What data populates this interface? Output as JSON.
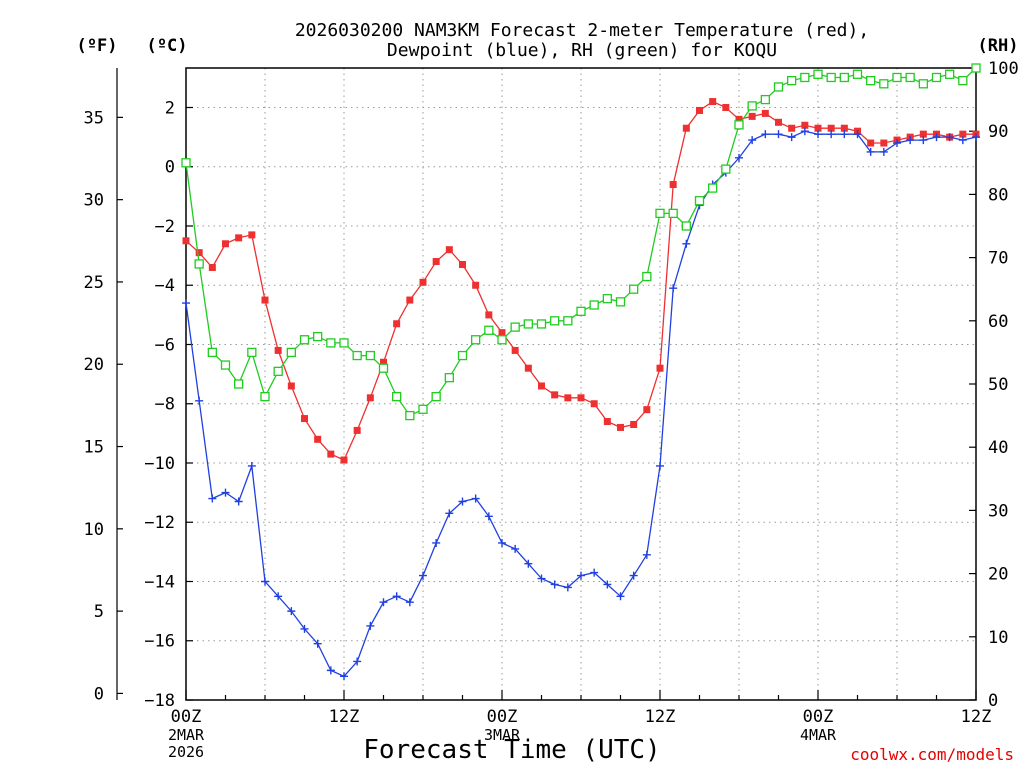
{
  "chart_data": {
    "type": "line",
    "title_line1": "2026030200 NAM3KM Forecast 2-meter Temperature (red),",
    "title_line2": "Dewpoint (blue), RH (green) for KOQU",
    "xlabel": "Forecast Time (UTC)",
    "credit": "coolwx.com/models",
    "units": {
      "fahrenheit": "(ºF)",
      "celsius": "(ºC)",
      "rh": "(RH)"
    },
    "x_hours_range": [
      0,
      60
    ],
    "celsius_range": [
      -18,
      3.333
    ],
    "rh_range": [
      0,
      100
    ],
    "x_ticks": [
      {
        "hour": 0,
        "label": "00Z",
        "date1": "2MAR",
        "date2": "2026"
      },
      {
        "hour": 12,
        "label": "12Z",
        "date1": "",
        "date2": ""
      },
      {
        "hour": 24,
        "label": "00Z",
        "date1": "3MAR",
        "date2": ""
      },
      {
        "hour": 36,
        "label": "12Z",
        "date1": "",
        "date2": ""
      },
      {
        "hour": 48,
        "label": "00Z",
        "date1": "4MAR",
        "date2": ""
      },
      {
        "hour": 60,
        "label": "12Z",
        "date1": "",
        "date2": ""
      }
    ],
    "celsius_ticks": [
      2,
      0,
      -2,
      -4,
      -6,
      -8,
      -10,
      -12,
      -14,
      -16,
      -18
    ],
    "fahrenheit_ticks": [
      35,
      30,
      25,
      20,
      15,
      10,
      5,
      0
    ],
    "rh_ticks": [
      100,
      90,
      80,
      70,
      60,
      50,
      40,
      30,
      20,
      10,
      0
    ],
    "hours": [
      0,
      1,
      2,
      3,
      4,
      5,
      6,
      7,
      8,
      9,
      10,
      11,
      12,
      13,
      14,
      15,
      16,
      17,
      18,
      19,
      20,
      21,
      22,
      23,
      24,
      25,
      26,
      27,
      28,
      29,
      30,
      31,
      32,
      33,
      34,
      35,
      36,
      37,
      38,
      39,
      40,
      41,
      42,
      43,
      44,
      45,
      46,
      47,
      48,
      49,
      50,
      51,
      52,
      53,
      54,
      55,
      56,
      57,
      58,
      59,
      60
    ],
    "series": [
      {
        "name": "Temperature",
        "unit": "C",
        "color": "#ee3030",
        "marker": "filled-square",
        "values": [
          -2.5,
          -2.9,
          -3.4,
          -2.6,
          -2.4,
          -2.3,
          -4.5,
          -6.2,
          -7.4,
          -8.5,
          -9.2,
          -9.7,
          -9.9,
          -8.9,
          -7.8,
          -6.6,
          -5.3,
          -4.5,
          -3.9,
          -3.2,
          -2.8,
          -3.3,
          -4.0,
          -5.0,
          -5.6,
          -6.2,
          -6.8,
          -7.4,
          -7.7,
          -7.8,
          -7.8,
          -8.0,
          -8.6,
          -8.8,
          -8.7,
          -8.2,
          -6.8,
          -0.6,
          1.3,
          1.9,
          2.2,
          2.0,
          1.6,
          1.7,
          1.8,
          1.5,
          1.3,
          1.4,
          1.3,
          1.3,
          1.3,
          1.2,
          0.8,
          0.8,
          0.9,
          1.0,
          1.1,
          1.1,
          1.0,
          1.1,
          1.1
        ]
      },
      {
        "name": "Dewpoint",
        "unit": "C",
        "color": "#2040e0",
        "marker": "plus",
        "values": [
          -4.6,
          -7.9,
          -11.2,
          -11.0,
          -11.3,
          -10.1,
          -14.0,
          -14.5,
          -15.0,
          -15.6,
          -16.1,
          -17.0,
          -17.2,
          -16.7,
          -15.5,
          -14.7,
          -14.5,
          -14.7,
          -13.8,
          -12.7,
          -11.7,
          -11.3,
          -11.2,
          -11.8,
          -12.7,
          -12.9,
          -13.4,
          -13.9,
          -14.1,
          -14.2,
          -13.8,
          -13.7,
          -14.1,
          -14.5,
          -13.8,
          -13.1,
          -10.1,
          -4.1,
          -2.6,
          -1.3,
          -0.6,
          -0.2,
          0.3,
          0.9,
          1.1,
          1.1,
          1.0,
          1.2,
          1.1,
          1.1,
          1.1,
          1.1,
          0.5,
          0.5,
          0.8,
          0.9,
          0.9,
          1.0,
          1.0,
          0.9,
          1.0
        ]
      },
      {
        "name": "RH",
        "unit": "%",
        "color": "#20cc20",
        "marker": "open-square",
        "values": [
          85,
          69,
          55,
          53,
          50,
          55,
          48,
          52,
          55,
          57,
          57.5,
          56.5,
          56.5,
          54.5,
          54.5,
          52.5,
          48,
          45,
          46,
          48,
          51,
          54.5,
          57,
          58.5,
          57,
          59,
          59.5,
          59.5,
          60,
          60,
          61.5,
          62.5,
          63.5,
          63,
          65,
          67,
          77,
          77,
          75,
          79,
          81,
          84,
          91,
          94,
          95,
          97,
          98,
          98.5,
          99,
          98.5,
          98.5,
          99,
          98,
          97.5,
          98.5,
          98.5,
          97.5,
          98.5,
          99,
          98,
          100
        ]
      }
    ]
  }
}
